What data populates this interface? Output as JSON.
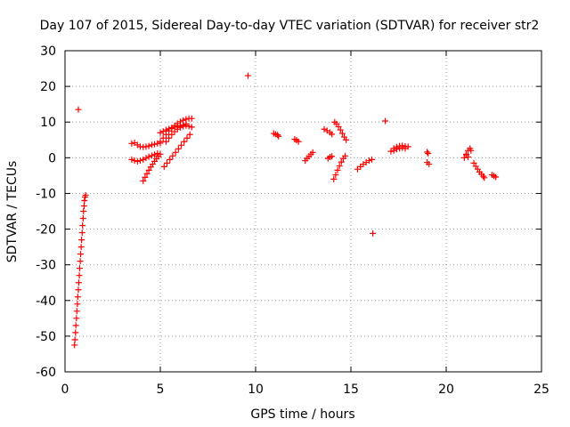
{
  "chart_data": {
    "type": "scatter",
    "title": "Day 107 of 2015, Sidereal Day-to-day VTEC variation (SDTVAR) for receiver str2",
    "xlabel": "GPS time / hours",
    "ylabel": "SDTVAR / TECUs",
    "xlim": [
      0,
      25
    ],
    "ylim": [
      -60,
      30
    ],
    "xticks": [
      0,
      5,
      10,
      15,
      20,
      25
    ],
    "yticks": [
      -60,
      -50,
      -40,
      -30,
      -20,
      -10,
      0,
      10,
      20,
      30
    ],
    "xtick_labels": [
      "0",
      "5",
      "10",
      "15",
      "20",
      "25"
    ],
    "ytick_labels": [
      "-60",
      "-50",
      "-40",
      "-30",
      "-20",
      "-10",
      "0",
      "10",
      "20",
      "30"
    ],
    "grid": true,
    "marker": "+",
    "color": "#ff0000",
    "series": [
      {
        "name": "SDTVAR",
        "points": [
          [
            0.5,
            -52.5
          ],
          [
            0.52,
            -51
          ],
          [
            0.55,
            -49
          ],
          [
            0.57,
            -47
          ],
          [
            0.6,
            -45
          ],
          [
            0.62,
            -43
          ],
          [
            0.65,
            -41
          ],
          [
            0.67,
            -39
          ],
          [
            0.7,
            -37
          ],
          [
            0.72,
            -35
          ],
          [
            0.75,
            -33
          ],
          [
            0.77,
            -31
          ],
          [
            0.8,
            -29
          ],
          [
            0.82,
            -27
          ],
          [
            0.85,
            -25
          ],
          [
            0.87,
            -23
          ],
          [
            0.9,
            -21
          ],
          [
            0.92,
            -19
          ],
          [
            0.95,
            -17
          ],
          [
            0.97,
            -15
          ],
          [
            1.0,
            -13.5
          ],
          [
            1.02,
            -12
          ],
          [
            1.05,
            -11
          ],
          [
            1.08,
            -10.5
          ],
          [
            0.7,
            13.5
          ],
          [
            3.5,
            4
          ],
          [
            3.65,
            4.2
          ],
          [
            3.8,
            3.6
          ],
          [
            3.95,
            3.1
          ],
          [
            4.1,
            3.0
          ],
          [
            4.25,
            3.1
          ],
          [
            4.4,
            3.3
          ],
          [
            4.55,
            3.6
          ],
          [
            4.7,
            3.8
          ],
          [
            4.85,
            4.0
          ],
          [
            5.0,
            4.1
          ],
          [
            3.5,
            -0.5
          ],
          [
            3.65,
            -0.8
          ],
          [
            3.8,
            -1.0
          ],
          [
            3.95,
            -0.8
          ],
          [
            4.1,
            -0.5
          ],
          [
            4.25,
            -0.1
          ],
          [
            4.4,
            0.3
          ],
          [
            4.55,
            0.6
          ],
          [
            4.7,
            0.9
          ],
          [
            4.85,
            1.2
          ],
          [
            4.1,
            -6.5
          ],
          [
            4.2,
            -5.5
          ],
          [
            4.3,
            -4.5
          ],
          [
            4.4,
            -3.5
          ],
          [
            4.5,
            -2.6
          ],
          [
            4.6,
            -1.8
          ],
          [
            4.7,
            -1.0
          ],
          [
            4.8,
            -0.3
          ],
          [
            4.9,
            0.4
          ],
          [
            5.0,
            1.0
          ],
          [
            5.0,
            4.5
          ],
          [
            5.15,
            5.5
          ],
          [
            5.3,
            6.5
          ],
          [
            5.45,
            7.5
          ],
          [
            5.6,
            8.2
          ],
          [
            5.75,
            9.0
          ],
          [
            5.9,
            9.6
          ],
          [
            6.05,
            10.1
          ],
          [
            6.2,
            10.5
          ],
          [
            6.35,
            10.8
          ],
          [
            6.5,
            11.0
          ],
          [
            6.65,
            11.0
          ],
          [
            5.0,
            7.0
          ],
          [
            5.15,
            7.4
          ],
          [
            5.3,
            7.8
          ],
          [
            5.45,
            8.1
          ],
          [
            5.6,
            8.4
          ],
          [
            5.75,
            8.6
          ],
          [
            5.9,
            8.8
          ],
          [
            6.05,
            9.0
          ],
          [
            6.2,
            9.2
          ],
          [
            6.35,
            9.5
          ],
          [
            5.3,
            4.5
          ],
          [
            5.45,
            5.5
          ],
          [
            5.6,
            6.5
          ],
          [
            5.75,
            7.3
          ],
          [
            5.9,
            8.0
          ],
          [
            6.05,
            8.5
          ],
          [
            6.2,
            8.8
          ],
          [
            6.35,
            9.0
          ],
          [
            6.5,
            8.8
          ],
          [
            6.65,
            8.6
          ],
          [
            5.2,
            -2.5
          ],
          [
            5.35,
            -1.5
          ],
          [
            5.5,
            -0.5
          ],
          [
            5.65,
            0.5
          ],
          [
            5.8,
            1.5
          ],
          [
            5.95,
            2.5
          ],
          [
            6.1,
            3.5
          ],
          [
            6.25,
            4.5
          ],
          [
            6.4,
            5.5
          ],
          [
            6.55,
            6.5
          ],
          [
            9.6,
            23
          ],
          [
            10.95,
            6.8
          ],
          [
            11.05,
            6.6
          ],
          [
            11.15,
            6.4
          ],
          [
            11.2,
            6.0
          ],
          [
            12.05,
            5.2
          ],
          [
            12.15,
            4.9
          ],
          [
            12.25,
            4.5
          ],
          [
            12.6,
            -0.8
          ],
          [
            12.7,
            -0.2
          ],
          [
            12.8,
            0.4
          ],
          [
            12.9,
            1.0
          ],
          [
            13.0,
            1.5
          ],
          [
            13.6,
            8.0
          ],
          [
            13.75,
            7.6
          ],
          [
            13.9,
            7.1
          ],
          [
            14.0,
            6.6
          ],
          [
            13.8,
            -0.2
          ],
          [
            13.9,
            0.2
          ],
          [
            14.0,
            0.4
          ],
          [
            14.15,
            10.0
          ],
          [
            14.25,
            9.5
          ],
          [
            14.35,
            8.7
          ],
          [
            14.45,
            7.8
          ],
          [
            14.55,
            6.8
          ],
          [
            14.65,
            5.8
          ],
          [
            14.75,
            5.0
          ],
          [
            14.1,
            -6.0
          ],
          [
            14.2,
            -4.8
          ],
          [
            14.3,
            -3.5
          ],
          [
            14.4,
            -2.3
          ],
          [
            14.5,
            -1.2
          ],
          [
            14.6,
            -0.2
          ],
          [
            14.7,
            0.5
          ],
          [
            15.35,
            -3.2
          ],
          [
            15.5,
            -2.5
          ],
          [
            15.65,
            -1.8
          ],
          [
            15.8,
            -1.3
          ],
          [
            15.95,
            -0.8
          ],
          [
            16.1,
            -0.5
          ],
          [
            16.15,
            -21.2
          ],
          [
            16.8,
            10.3
          ],
          [
            17.1,
            1.8
          ],
          [
            17.25,
            2.6
          ],
          [
            17.4,
            3.0
          ],
          [
            17.55,
            3.3
          ],
          [
            17.7,
            3.4
          ],
          [
            17.85,
            3.2
          ],
          [
            18.0,
            3.1
          ],
          [
            17.25,
            2.0
          ],
          [
            17.4,
            2.4
          ],
          [
            17.55,
            2.6
          ],
          [
            17.7,
            2.8
          ],
          [
            17.85,
            2.6
          ],
          [
            19.0,
            1.6
          ],
          [
            19.05,
            1.2
          ],
          [
            19.0,
            -1.3
          ],
          [
            19.1,
            -1.8
          ],
          [
            20.95,
            0.0
          ],
          [
            21.05,
            1.0
          ],
          [
            21.15,
            2.0
          ],
          [
            21.25,
            2.6
          ],
          [
            21.3,
            2.0
          ],
          [
            21.05,
            0.8
          ],
          [
            21.15,
            0.2
          ],
          [
            21.45,
            -1.5
          ],
          [
            21.55,
            -2.4
          ],
          [
            21.65,
            -3.2
          ],
          [
            21.75,
            -4.0
          ],
          [
            21.85,
            -4.6
          ],
          [
            21.95,
            -5.2
          ],
          [
            22.0,
            -5.6
          ],
          [
            22.4,
            -4.8
          ],
          [
            22.5,
            -5.1
          ],
          [
            22.6,
            -5.4
          ]
        ]
      }
    ]
  }
}
